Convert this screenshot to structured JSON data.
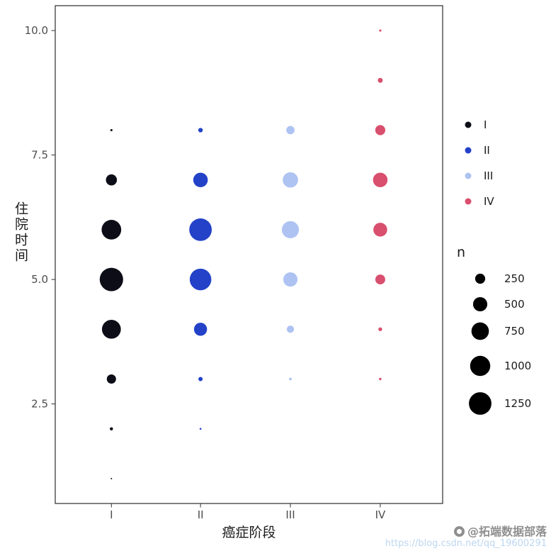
{
  "figure": {
    "background": "#ffffff",
    "panel_border": "#2b2b2b"
  },
  "watermark": {
    "handle": "@拓端数据部落",
    "url": "https://blog.csdn.net/qq_19600291"
  },
  "chart_data": {
    "type": "scatter",
    "subtype": "count-bubble",
    "title": "",
    "xlabel": "癌症阶段",
    "ylabel": "住院时间",
    "x_categories": [
      "I",
      "II",
      "III",
      "IV"
    ],
    "y_ticks": [
      2.5,
      5.0,
      7.5,
      10.0
    ],
    "y_tick_labels": [
      "2.5",
      "5.0",
      "7.5",
      "10.0"
    ],
    "ylim": [
      0.5,
      10.5
    ],
    "grid": false,
    "legend_position": "right",
    "size_scale": {
      "k": 0.45,
      "min_radius": 1
    },
    "size_legend": {
      "title": "n",
      "values": [
        250,
        500,
        750,
        1000,
        1250
      ]
    },
    "series": [
      {
        "name": "I",
        "color": "#0d0d17",
        "points": [
          {
            "y": 1,
            "n": 5
          },
          {
            "y": 2,
            "n": 25
          },
          {
            "y": 3,
            "n": 210
          },
          {
            "y": 4,
            "n": 880
          },
          {
            "y": 5,
            "n": 1350
          },
          {
            "y": 6,
            "n": 950
          },
          {
            "y": 7,
            "n": 300
          },
          {
            "y": 8,
            "n": 12
          }
        ]
      },
      {
        "name": "II",
        "color": "#2342c8",
        "points": [
          {
            "y": 2,
            "n": 8
          },
          {
            "y": 3,
            "n": 45
          },
          {
            "y": 4,
            "n": 420
          },
          {
            "y": 5,
            "n": 1150
          },
          {
            "y": 6,
            "n": 1250
          },
          {
            "y": 7,
            "n": 520
          },
          {
            "y": 8,
            "n": 50
          }
        ]
      },
      {
        "name": "III",
        "color": "#aec3f2",
        "points": [
          {
            "y": 3,
            "n": 18
          },
          {
            "y": 4,
            "n": 130
          },
          {
            "y": 5,
            "n": 500
          },
          {
            "y": 6,
            "n": 720
          },
          {
            "y": 7,
            "n": 580
          },
          {
            "y": 8,
            "n": 170
          }
        ]
      },
      {
        "name": "IV",
        "color": "#d94f6e",
        "points": [
          {
            "y": 3,
            "n": 15
          },
          {
            "y": 4,
            "n": 35
          },
          {
            "y": 5,
            "n": 240
          },
          {
            "y": 6,
            "n": 470
          },
          {
            "y": 7,
            "n": 520
          },
          {
            "y": 8,
            "n": 250
          },
          {
            "y": 9,
            "n": 60
          },
          {
            "y": 10,
            "n": 12
          }
        ]
      }
    ]
  }
}
